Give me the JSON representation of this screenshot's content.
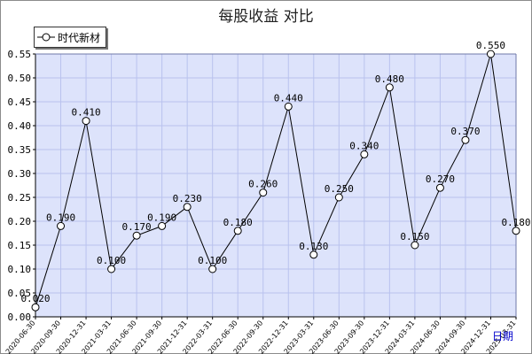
{
  "chart_data": {
    "type": "line",
    "title": "每股收益  对比",
    "xlabel": "日期",
    "ylabel": "",
    "ylim": [
      0,
      0.55
    ],
    "yticks": [
      "0.00",
      "0.05",
      "0.10",
      "0.15",
      "0.20",
      "0.25",
      "0.30",
      "0.35",
      "0.40",
      "0.45",
      "0.50",
      "0.55"
    ],
    "grid": true,
    "legend_position": "top-left",
    "categories": [
      "2020-06-30",
      "2020-09-30",
      "2020-12-31",
      "2021-03-31",
      "2021-06-30",
      "2021-09-30",
      "2021-12-31",
      "2022-03-31",
      "2022-06-30",
      "2022-09-30",
      "2022-12-31",
      "2023-03-31",
      "2023-06-30",
      "2023-09-30",
      "2023-12-31",
      "2024-03-31",
      "2024-06-30",
      "2024-09-30",
      "2024-12-31",
      "2025-03-31"
    ],
    "series": [
      {
        "name": "时代新材",
        "values": [
          0.02,
          0.19,
          0.41,
          0.1,
          0.17,
          0.19,
          0.23,
          0.1,
          0.18,
          0.26,
          0.44,
          0.13,
          0.25,
          0.34,
          0.48,
          0.15,
          0.27,
          0.37,
          0.55,
          0.18
        ],
        "labels": [
          "0.020",
          "0.190",
          "0.410",
          "0.100",
          "0.170",
          "0.190",
          "0.230",
          "0.100",
          "0.180",
          "0.260",
          "0.440",
          "0.130",
          "0.250",
          "0.340",
          "0.480",
          "0.150",
          "0.270",
          "0.370",
          "0.550",
          "0.180"
        ]
      }
    ],
    "colors": {
      "plot_background": "#dde3fb",
      "grid": "#b9c2ee",
      "line": "#000000",
      "marker_stroke": "#000000",
      "marker_fill": "#ffffff",
      "xlabel_color": "#0000cc"
    },
    "marker": "circle-icon"
  }
}
